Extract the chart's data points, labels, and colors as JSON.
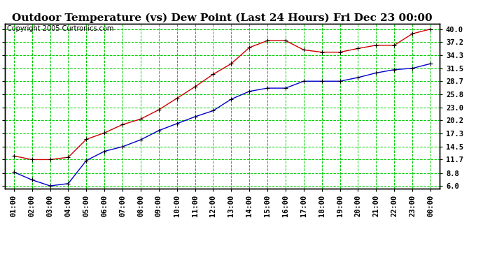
{
  "title": "Outdoor Temperature (vs) Dew Point (Last 24 Hours) Fri Dec 23 00:00",
  "copyright": "Copyright 2005 Curtronics.com",
  "x_labels": [
    "01:00",
    "02:00",
    "03:00",
    "04:00",
    "05:00",
    "06:00",
    "07:00",
    "08:00",
    "09:00",
    "10:00",
    "11:00",
    "12:00",
    "13:00",
    "14:00",
    "15:00",
    "16:00",
    "17:00",
    "18:00",
    "19:00",
    "20:00",
    "21:00",
    "22:00",
    "23:00",
    "00:00"
  ],
  "temp_data": [
    12.5,
    11.7,
    11.7,
    12.2,
    16.1,
    17.5,
    19.3,
    20.5,
    22.5,
    25.0,
    27.5,
    30.2,
    32.5,
    36.0,
    37.5,
    37.5,
    35.5,
    35.0,
    35.0,
    35.8,
    36.5,
    36.5,
    39.0,
    40.0
  ],
  "dew_data": [
    9.0,
    7.3,
    6.0,
    6.5,
    11.5,
    13.5,
    14.5,
    16.0,
    18.0,
    19.5,
    21.0,
    22.3,
    24.8,
    26.5,
    27.2,
    27.2,
    28.7,
    28.7,
    28.7,
    29.5,
    30.5,
    31.2,
    31.5,
    32.5
  ],
  "temp_color": "#cc0000",
  "dew_color": "#0000cc",
  "bg_color": "#ffffff",
  "plot_bg": "#ffffff",
  "grid_color": "#00cc00",
  "grid_color_minor": "#008800",
  "y_ticks": [
    6.0,
    8.8,
    11.7,
    14.5,
    17.3,
    20.2,
    23.0,
    25.8,
    28.7,
    31.5,
    34.3,
    37.2,
    40.0
  ],
  "ylim": [
    5.4,
    41.2
  ],
  "title_fontsize": 11,
  "copyright_fontsize": 7,
  "tick_fontsize": 7.5,
  "marker": "+"
}
